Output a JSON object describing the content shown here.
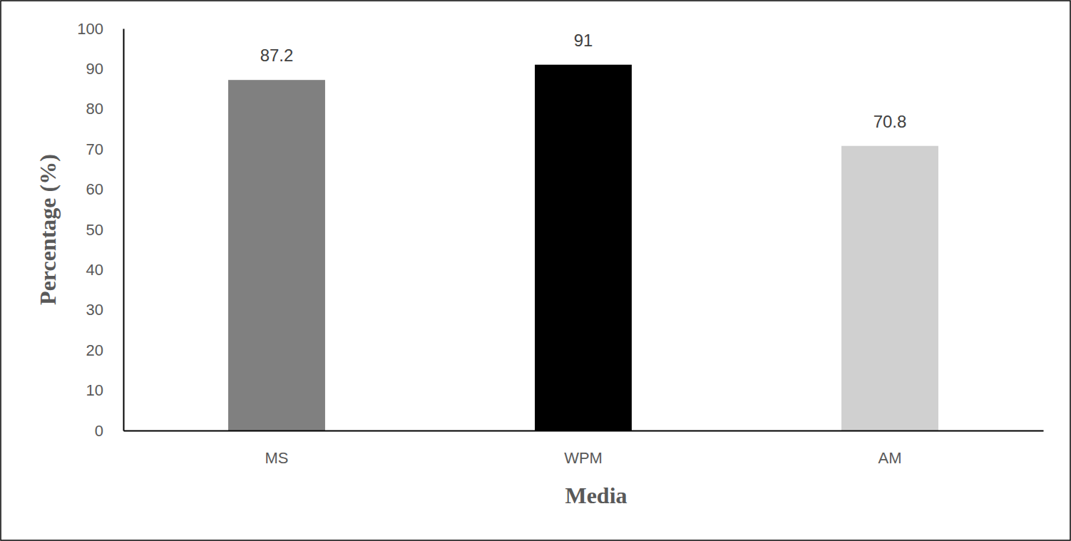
{
  "chart_data": {
    "type": "bar",
    "x_label": "Media",
    "y_label": "Percentage (%)",
    "categories": [
      "MS",
      "WPM",
      "AM"
    ],
    "values": [
      87.2,
      91,
      70.8
    ],
    "colors": [
      "#808080",
      "#000000",
      "#d0d0d0"
    ],
    "ylim": [
      0,
      100
    ],
    "yticks": [
      0,
      10,
      20,
      30,
      40,
      50,
      60,
      70,
      80,
      90,
      100
    ],
    "grid": false,
    "data_labels": true
  }
}
